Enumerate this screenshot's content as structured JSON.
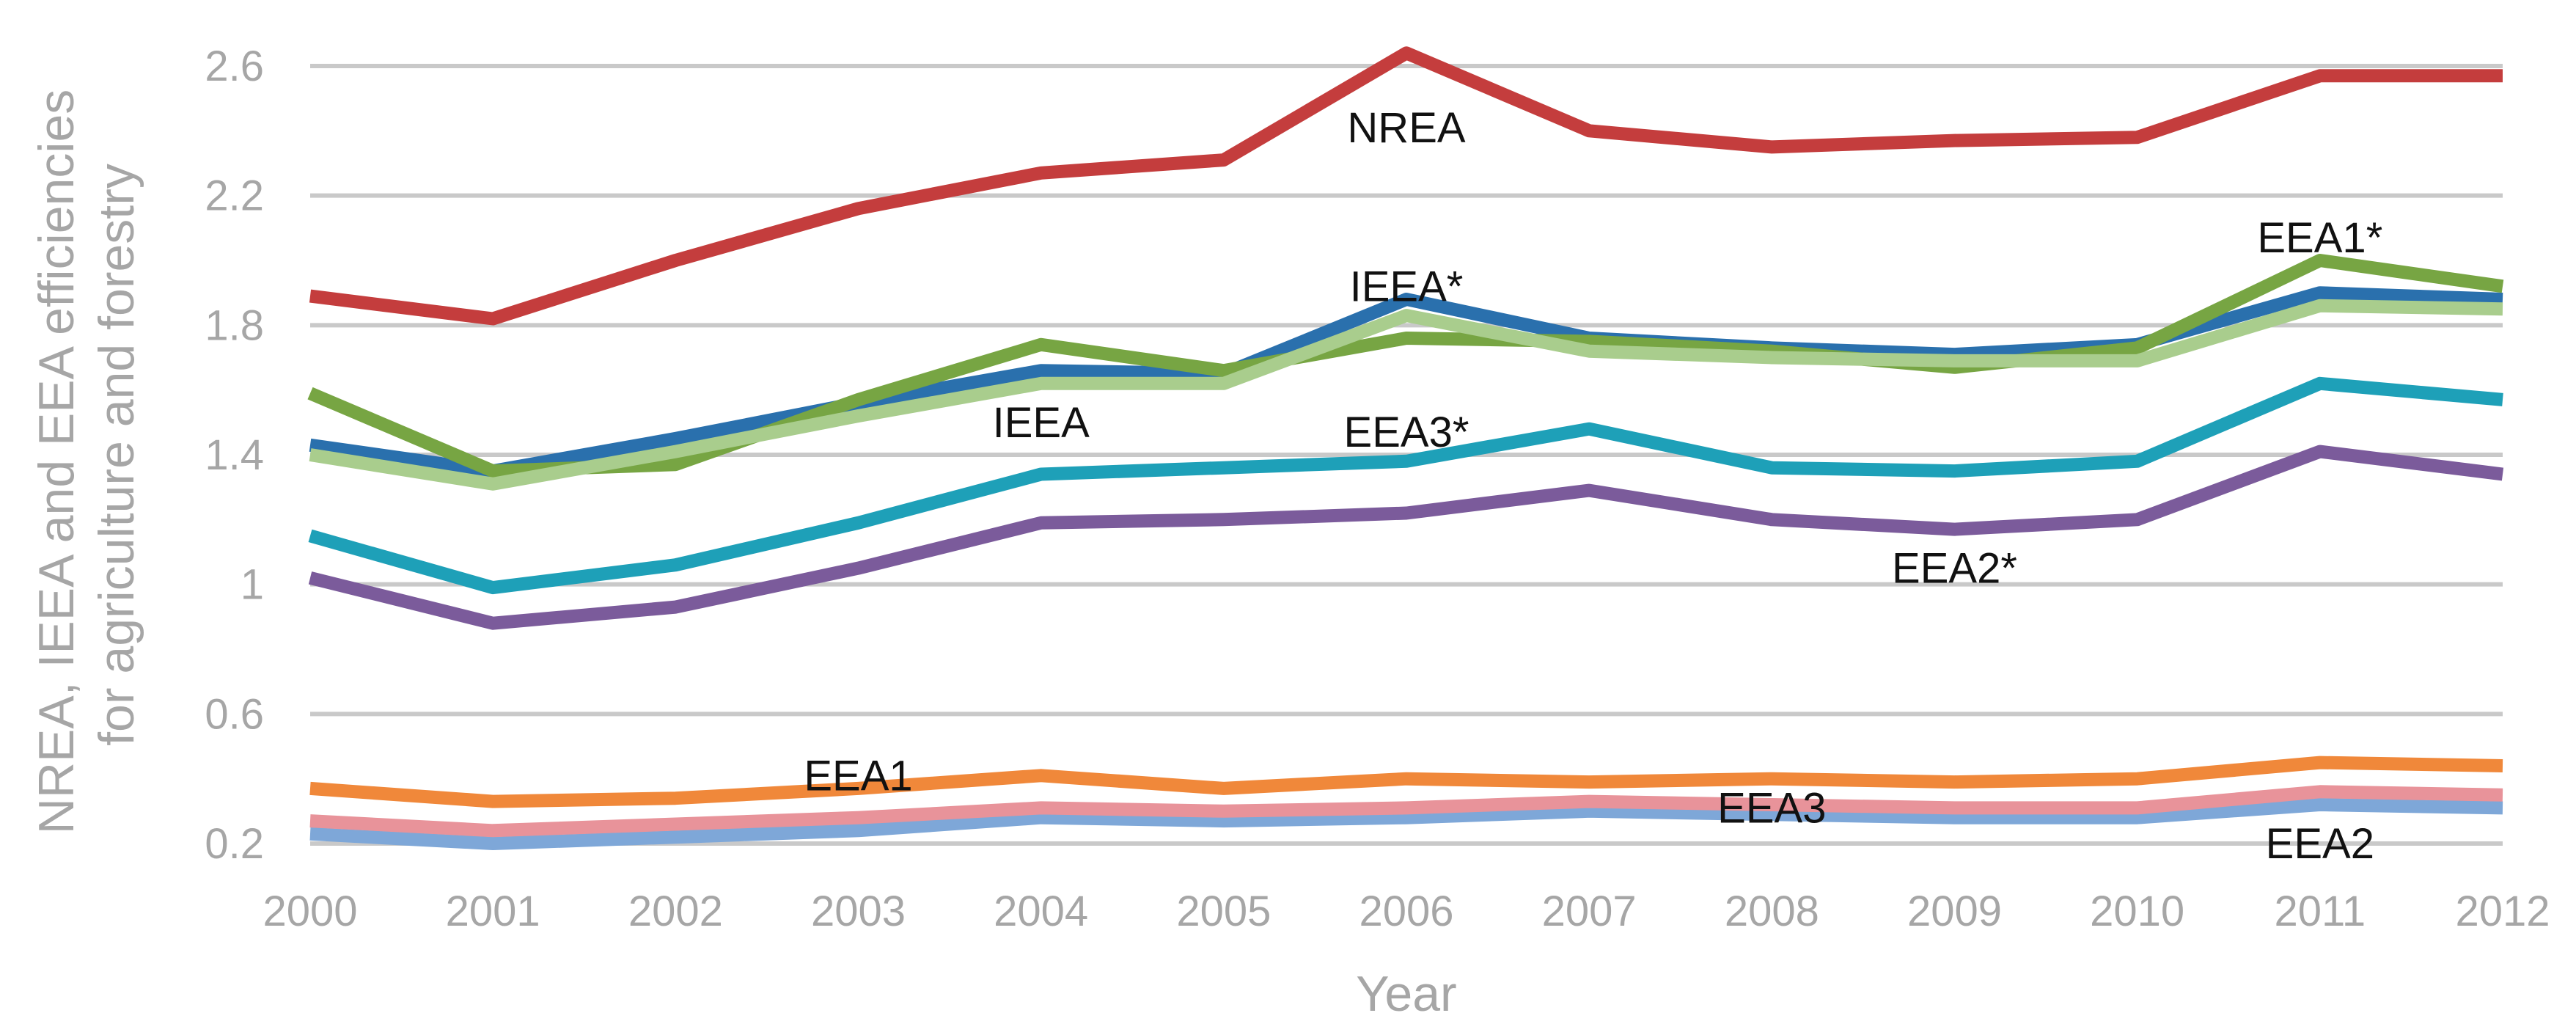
{
  "chart_data": {
    "type": "line",
    "xlabel": "Year",
    "ylabel": "NREA, IEEA and EEA efficiencies for agriculture and forestry",
    "ylabel_lines": [
      "NREA, IEEA and EEA efficiencies",
      "for agriculture and forestry"
    ],
    "x": [
      "2000",
      "2001",
      "2002",
      "2003",
      "2004",
      "2005",
      "2006",
      "2007",
      "2008",
      "2009",
      "2010",
      "2011",
      "2012"
    ],
    "ylim": [
      0.2,
      2.6
    ],
    "yticks": [
      "0.2",
      "0.6",
      "1",
      "1.4",
      "1.8",
      "2.2",
      "2.6"
    ],
    "grid": true,
    "series": [
      {
        "name": "EEA2",
        "color": "#7ea7d8",
        "values": [
          0.23,
          0.2,
          0.22,
          0.24,
          0.28,
          0.27,
          0.28,
          0.3,
          0.29,
          0.28,
          0.28,
          0.32,
          0.31
        ]
      },
      {
        "name": "EEA3",
        "color": "#e8939a",
        "values": [
          0.27,
          0.24,
          0.26,
          0.28,
          0.31,
          0.3,
          0.31,
          0.33,
          0.32,
          0.31,
          0.31,
          0.36,
          0.35
        ]
      },
      {
        "name": "EEA1",
        "color": "#f0883a",
        "values": [
          0.37,
          0.33,
          0.34,
          0.37,
          0.41,
          0.37,
          0.4,
          0.39,
          0.4,
          0.39,
          0.4,
          0.45,
          0.44
        ]
      },
      {
        "name": "EEA2*",
        "color": "#7b5b9b",
        "values": [
          1.02,
          0.88,
          0.93,
          1.05,
          1.19,
          1.2,
          1.22,
          1.29,
          1.2,
          1.17,
          1.2,
          1.41,
          1.34
        ]
      },
      {
        "name": "EEA3*",
        "color": "#1ea0b8",
        "values": [
          1.15,
          0.99,
          1.06,
          1.19,
          1.34,
          1.36,
          1.38,
          1.48,
          1.36,
          1.35,
          1.38,
          1.62,
          1.57
        ]
      },
      {
        "name": "IEEA*",
        "color": "#2a70ad",
        "values": [
          1.43,
          1.35,
          1.45,
          1.56,
          1.66,
          1.65,
          1.88,
          1.76,
          1.73,
          1.71,
          1.74,
          1.9,
          1.88
        ]
      },
      {
        "name": "EEA1*",
        "color": "#77a543",
        "values": [
          1.59,
          1.35,
          1.37,
          1.57,
          1.74,
          1.66,
          1.76,
          1.75,
          1.72,
          1.67,
          1.73,
          2.0,
          1.92
        ]
      },
      {
        "name": "IEEA",
        "color": "#a9cd8d",
        "values": [
          1.4,
          1.31,
          1.41,
          1.52,
          1.62,
          1.62,
          1.83,
          1.72,
          1.7,
          1.69,
          1.69,
          1.86,
          1.85
        ]
      },
      {
        "name": "NREA",
        "color": "#c43d3d",
        "values": [
          1.89,
          1.82,
          2.0,
          2.16,
          2.27,
          2.31,
          2.64,
          2.4,
          2.35,
          2.37,
          2.38,
          2.57,
          2.57
        ]
      }
    ],
    "annotations": [
      {
        "text": "NREA",
        "x": "2006",
        "y": 2.41
      },
      {
        "text": "IEEA*",
        "x": "2006",
        "y": 1.92
      },
      {
        "text": "EEA1*",
        "x": "2011",
        "y": 2.07
      },
      {
        "text": "IEEA",
        "x": "2004",
        "y": 1.5
      },
      {
        "text": "EEA3*",
        "x": "2006",
        "y": 1.47
      },
      {
        "text": "EEA2*",
        "x": "2009",
        "y": 1.05
      },
      {
        "text": "EEA1",
        "x": "2003",
        "y": 0.41
      },
      {
        "text": "EEA3",
        "x": "2008",
        "y": 0.31
      },
      {
        "text": "EEA2",
        "x": "2011",
        "y": 0.2
      }
    ]
  }
}
